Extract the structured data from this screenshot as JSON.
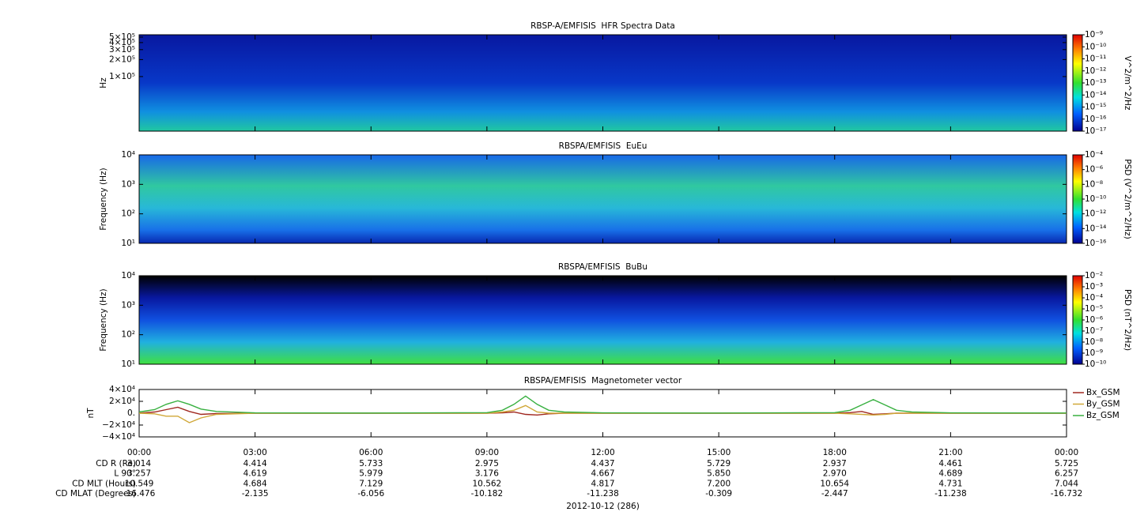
{
  "chart_data": [
    {
      "type": "spectrogram",
      "title": "RBSP-A/EMFISIS  HFR Spectra Data",
      "ylabel": "Hz",
      "log_y": true,
      "ylim": [
        10800,
        550000
      ],
      "yticks": [
        {
          "value": 500000,
          "label": "5×10⁵"
        },
        {
          "value": 400000,
          "label": "4×10⁵"
        },
        {
          "value": 300000,
          "label": "3×10⁵"
        },
        {
          "value": 200000,
          "label": "2×10⁵"
        },
        {
          "value": 100000,
          "label": "1×10⁵"
        }
      ],
      "colorbar_label": "V^2/m^2/Hz",
      "clim": [
        1e-17,
        1e-09
      ],
      "cticks": [
        {
          "value": 1e-09,
          "label": "10⁻⁹"
        },
        {
          "value": 1e-10,
          "label": "10⁻¹⁰"
        },
        {
          "value": 1e-11,
          "label": "10⁻¹¹"
        },
        {
          "value": 1e-12,
          "label": "10⁻¹²"
        },
        {
          "value": 1e-13,
          "label": "10⁻¹³"
        },
        {
          "value": 1e-14,
          "label": "10⁻¹⁴"
        },
        {
          "value": 1e-15,
          "label": "10⁻¹⁵"
        },
        {
          "value": 1e-16,
          "label": "10⁻¹⁶"
        },
        {
          "value": 1e-17,
          "label": "10⁻¹⁷"
        }
      ]
    },
    {
      "type": "spectrogram",
      "title": "RBSPA/EMFISIS  EuEu",
      "ylabel": "Frequency (Hz)",
      "log_y": true,
      "ylim": [
        10,
        10000
      ],
      "yticks": [
        {
          "value": 10000,
          "label": "10⁴"
        },
        {
          "value": 1000,
          "label": "10³"
        },
        {
          "value": 100,
          "label": "10²"
        },
        {
          "value": 10,
          "label": "10¹"
        }
      ],
      "colorbar_label": "PSD (V^2/m^2/Hz)",
      "clim": [
        1e-16,
        0.0001
      ],
      "cticks": [
        {
          "value": 0.0001,
          "label": "10⁻⁴"
        },
        {
          "value": 1e-06,
          "label": "10⁻⁶"
        },
        {
          "value": 1e-08,
          "label": "10⁻⁸"
        },
        {
          "value": 1e-10,
          "label": "10⁻¹⁰"
        },
        {
          "value": 1e-12,
          "label": "10⁻¹²"
        },
        {
          "value": 1e-14,
          "label": "10⁻¹⁴"
        },
        {
          "value": 1e-16,
          "label": "10⁻¹⁶"
        }
      ]
    },
    {
      "type": "spectrogram",
      "title": "RBSPA/EMFISIS  BuBu",
      "ylabel": "Frequency (Hz)",
      "log_y": true,
      "ylim": [
        10,
        10000
      ],
      "yticks": [
        {
          "value": 10000,
          "label": "10⁴"
        },
        {
          "value": 1000,
          "label": "10³"
        },
        {
          "value": 100,
          "label": "10²"
        },
        {
          "value": 10,
          "label": "10¹"
        }
      ],
      "colorbar_label": "PSD (nT^2/Hz)",
      "clim": [
        1e-10,
        0.01
      ],
      "cticks": [
        {
          "value": 0.01,
          "label": "10⁻²"
        },
        {
          "value": 0.001,
          "label": "10⁻³"
        },
        {
          "value": 0.0001,
          "label": "10⁻⁴"
        },
        {
          "value": 1e-05,
          "label": "10⁻⁵"
        },
        {
          "value": 1e-06,
          "label": "10⁻⁶"
        },
        {
          "value": 1e-07,
          "label": "10⁻⁷"
        },
        {
          "value": 1e-08,
          "label": "10⁻⁸"
        },
        {
          "value": 1e-09,
          "label": "10⁻⁹"
        },
        {
          "value": 1e-10,
          "label": "10⁻¹⁰"
        }
      ]
    },
    {
      "type": "line",
      "title": "RBSPA/EMFISIS  Magnetometer vector",
      "ylabel": "nT",
      "ylim": [
        -40000,
        40000
      ],
      "yticks": [
        {
          "value": 40000,
          "label": "4×10⁴"
        },
        {
          "value": 20000,
          "label": "2×10⁴"
        },
        {
          "value": 0,
          "label": "0."
        },
        {
          "value": -20000,
          "label": "−2×10⁴"
        },
        {
          "value": -40000,
          "label": "−4×10⁴"
        }
      ],
      "xlim": [
        0,
        24
      ],
      "xticks": [
        {
          "value": 0,
          "label": "00:00"
        },
        {
          "value": 3,
          "label": "03:00"
        },
        {
          "value": 6,
          "label": "06:00"
        },
        {
          "value": 9,
          "label": "09:00"
        },
        {
          "value": 12,
          "label": "12:00"
        },
        {
          "value": 15,
          "label": "15:00"
        },
        {
          "value": 18,
          "label": "18:00"
        },
        {
          "value": 21,
          "label": "21:00"
        },
        {
          "value": 24,
          "label": "00:00"
        }
      ],
      "x": [
        0,
        0.4,
        0.7,
        1.0,
        1.3,
        1.6,
        2.0,
        3.0,
        6.0,
        9.0,
        9.4,
        9.7,
        10.0,
        10.3,
        10.6,
        11.0,
        12.0,
        15.0,
        18.0,
        18.4,
        18.7,
        19.0,
        19.3,
        19.6,
        20.0,
        21.0,
        24.0
      ],
      "series": [
        {
          "name": "Bx_GSM",
          "color": "#a02820",
          "values": [
            0,
            2000,
            6000,
            10000,
            3000,
            -2000,
            -500,
            -200,
            0,
            0,
            500,
            2000,
            -2000,
            -3000,
            -1000,
            0,
            0,
            0,
            0,
            1000,
            3000,
            -2000,
            -1000,
            0,
            0,
            0,
            0
          ]
        },
        {
          "name": "By_GSM",
          "color": "#d0a838",
          "values": [
            0,
            -1000,
            -5000,
            -5000,
            -16000,
            -8000,
            -2000,
            0,
            0,
            0,
            2000,
            5000,
            13000,
            2000,
            0,
            0,
            0,
            0,
            0,
            -1000,
            -2000,
            -3000,
            -2000,
            0,
            0,
            0,
            0
          ]
        },
        {
          "name": "Bz_GSM",
          "color": "#38b040",
          "values": [
            2000,
            6000,
            15000,
            21000,
            15000,
            7000,
            3000,
            500,
            300,
            1000,
            5000,
            15000,
            29000,
            15000,
            5000,
            2000,
            500,
            300,
            1000,
            5000,
            14000,
            23000,
            14000,
            5000,
            2000,
            500,
            300
          ]
        }
      ],
      "ephemeris": [
        {
          "label": "CD R (Re)",
          "values": [
            "3.014",
            "4.414",
            "5.733",
            "2.975",
            "4.437",
            "5.729",
            "2.937",
            "4.461",
            "5.725"
          ]
        },
        {
          "label": "L 90°",
          "values": [
            "3.257",
            "4.619",
            "5.979",
            "3.176",
            "4.667",
            "5.850",
            "2.970",
            "4.689",
            "6.257"
          ]
        },
        {
          "label": "CD MLT (Hours)",
          "values": [
            "10.549",
            "4.684",
            "7.129",
            "10.562",
            "4.817",
            "7.200",
            "10.654",
            "4.731",
            "7.044"
          ]
        },
        {
          "label": "CD MLAT (Degrees)",
          "values": [
            "-16.476",
            "-2.135",
            "-6.056",
            "-10.182",
            "-11.238",
            "-0.309",
            "-2.447",
            "-11.238",
            "-16.732"
          ]
        }
      ],
      "xlabel": "2012-10-12 (286)"
    }
  ]
}
